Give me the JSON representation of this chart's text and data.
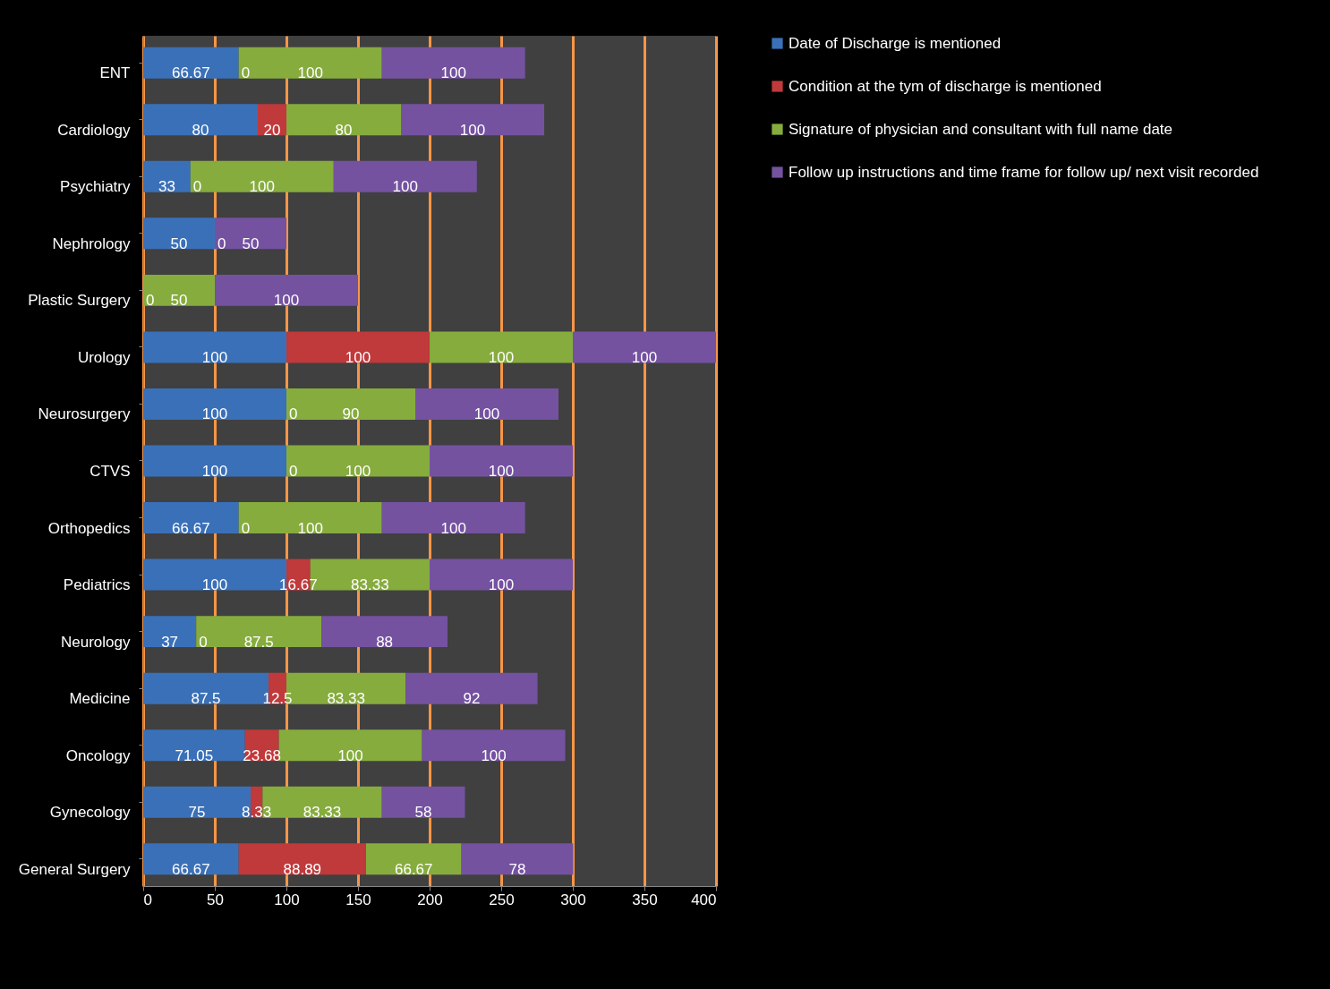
{
  "chart_data": {
    "type": "bar",
    "orientation": "horizontal",
    "stacked": true,
    "categories": [
      "ENT",
      "Cardiology",
      "Psychiatry",
      "Nephrology",
      "Plastic Surgery",
      "Urology",
      "Neurosurgery",
      "CTVS",
      "Orthopedics",
      "Pediatrics",
      "Neurology",
      "Medicine",
      "Oncology",
      "Gynecology",
      "General Surgery"
    ],
    "series": [
      {
        "name": "Date of Discharge is mentioned",
        "color": "#3a70b8",
        "values": [
          66.67,
          80,
          33,
          50,
          0,
          100,
          100,
          100,
          66.67,
          100,
          37,
          87.5,
          71.05,
          75,
          66.67
        ],
        "value_labels": [
          "66.67",
          "80",
          "33",
          "50",
          null,
          "100",
          "100",
          "100",
          "66.67",
          "100",
          "37",
          "87.5",
          "71.05",
          "75",
          "66.67"
        ]
      },
      {
        "name": "Condition at the tym of discharge is mentioned",
        "color": "#c0393b",
        "values": [
          0,
          20,
          0,
          0,
          null,
          100,
          0,
          0,
          0,
          16.67,
          0,
          12.5,
          23.68,
          8.33,
          88.89
        ],
        "value_labels": [
          null,
          "20",
          null,
          null,
          null,
          "100",
          null,
          null,
          null,
          "16.67",
          null,
          "12.5",
          "23.68",
          "8.33",
          "88.89"
        ]
      },
      {
        "name": "Signature of physician and consultant with full name date",
        "color": "#86ac3e",
        "values": [
          100,
          80,
          100,
          null,
          50,
          100,
          90,
          100,
          100,
          83.33,
          87.5,
          83.33,
          100,
          83.33,
          66.67
        ],
        "value_labels": [
          "100",
          "80",
          "100",
          null,
          "50",
          "100",
          "90",
          "100",
          "100",
          "83.33",
          "87.5",
          "83.33",
          "100",
          "83.33",
          "66.67"
        ]
      },
      {
        "name": "Follow up instructions and time frame for follow up/ next visit recorded",
        "color": "#7452a0",
        "values": [
          100,
          100,
          100,
          50,
          100,
          100,
          100,
          100,
          100,
          100,
          88,
          92,
          100,
          58,
          78
        ],
        "value_labels": [
          "100",
          "100",
          "100",
          "50",
          "100",
          "100",
          "100",
          "100",
          "100",
          "100",
          "88",
          "92",
          "100",
          "58",
          "78"
        ]
      }
    ],
    "annotations": [
      {
        "text": "0",
        "x": 66.67,
        "y": "ENT"
      },
      {
        "text": "0",
        "x": 33,
        "y": "Psychiatry"
      },
      {
        "text": "0",
        "x": 50,
        "y": "Nephrology"
      },
      {
        "text": "0",
        "x": 0,
        "y": "Plastic Surgery"
      },
      {
        "text": "0",
        "x": 100,
        "y": "Neurosurgery"
      },
      {
        "text": "0",
        "x": 100,
        "y": "CTVS"
      },
      {
        "text": "0",
        "x": 66.67,
        "y": "Orthopedics"
      },
      {
        "text": "0",
        "x": 37,
        "y": "Neurology"
      }
    ],
    "xlim": [
      0,
      400
    ],
    "xticks": [
      0,
      50,
      100,
      150,
      200,
      250,
      300,
      350,
      400
    ],
    "grid": "x",
    "legend": "right"
  }
}
